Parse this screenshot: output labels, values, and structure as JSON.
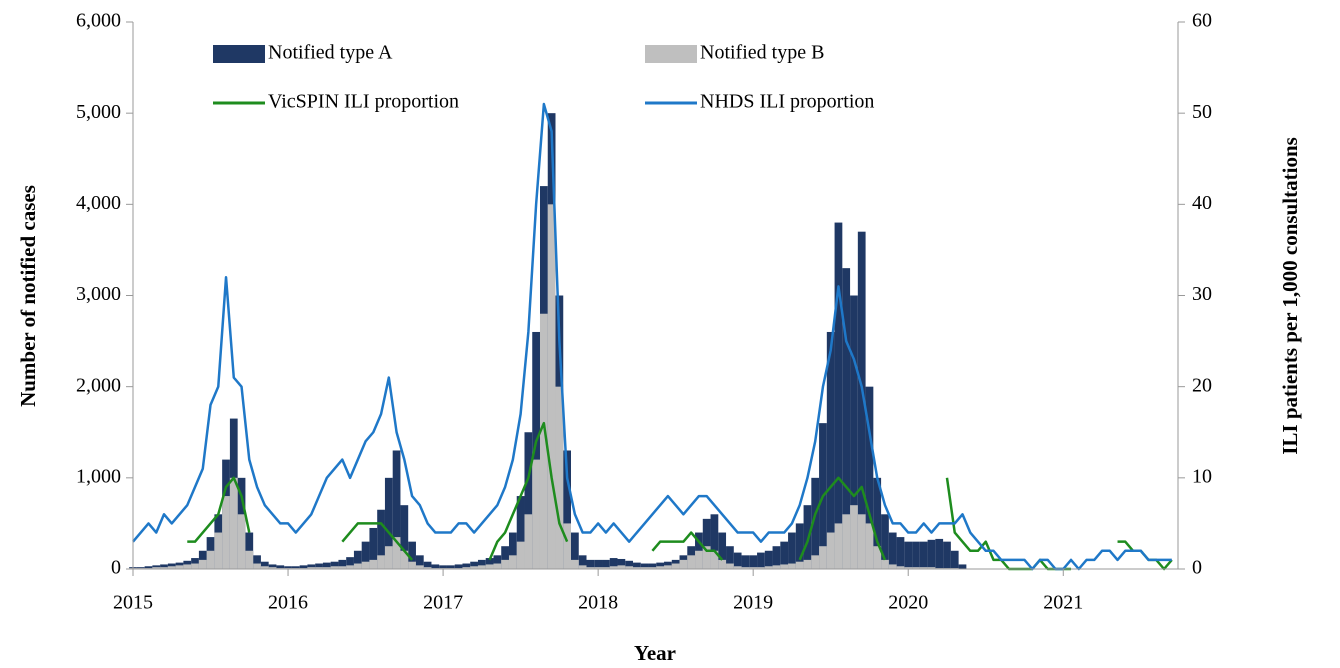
{
  "chart_data": {
    "type": "bar",
    "x_label": "Year",
    "y_label": "Number of notified cases",
    "y2_label": "ILI patients per 1,000 consultations",
    "legend": "upper center",
    "xlim": [
      2015,
      2021.74
    ],
    "xticks": [
      2015,
      2016,
      2017,
      2018,
      2019,
      2020,
      2021
    ],
    "ylim": [
      0,
      6000
    ],
    "yticks": [
      0,
      {
        "value": 1000,
        "label": "1,000"
      },
      {
        "value": 2000,
        "label": "2,000"
      },
      {
        "value": 3000,
        "label": "3,000"
      },
      {
        "value": 4000,
        "label": "4,000"
      },
      {
        "value": 5000,
        "label": "5,000"
      },
      {
        "value": 6000,
        "label": "6,000"
      }
    ],
    "y2lim": [
      0,
      60
    ],
    "y2ticks": [
      0,
      10,
      20,
      30,
      40,
      50,
      60
    ],
    "x": [
      2015,
      2015.05,
      2015.1,
      2015.15,
      2015.2,
      2015.25,
      2015.3,
      2015.35,
      2015.4,
      2015.45,
      2015.5,
      2015.55,
      2015.6,
      2015.65,
      2015.7,
      2015.75,
      2015.8,
      2015.85,
      2015.9,
      2015.95,
      2016,
      2016.05,
      2016.1,
      2016.15,
      2016.2,
      2016.25,
      2016.3,
      2016.35,
      2016.4,
      2016.45,
      2016.5,
      2016.55,
      2016.6,
      2016.65,
      2016.7,
      2016.75,
      2016.8,
      2016.85,
      2016.9,
      2016.95,
      2017,
      2017.05,
      2017.1,
      2017.15,
      2017.2,
      2017.25,
      2017.3,
      2017.35,
      2017.4,
      2017.45,
      2017.5,
      2017.55,
      2017.6,
      2017.65,
      2017.7,
      2017.75,
      2017.8,
      2017.85,
      2017.9,
      2017.95,
      2018,
      2018.05,
      2018.1,
      2018.15,
      2018.2,
      2018.25,
      2018.3,
      2018.35,
      2018.4,
      2018.45,
      2018.5,
      2018.55,
      2018.6,
      2018.65,
      2018.7,
      2018.75,
      2018.8,
      2018.85,
      2018.9,
      2018.95,
      2019,
      2019.05,
      2019.1,
      2019.15,
      2019.2,
      2019.25,
      2019.3,
      2019.35,
      2019.4,
      2019.45,
      2019.5,
      2019.55,
      2019.6,
      2019.65,
      2019.7,
      2019.75,
      2019.8,
      2019.85,
      2019.9,
      2019.95,
      2020,
      2020.05,
      2020.1,
      2020.15,
      2020.2,
      2020.25,
      2020.3,
      2020.35,
      2020.4,
      2020.45,
      2020.5,
      2020.55,
      2020.6,
      2020.65,
      2020.7,
      2020.75,
      2020.8,
      2020.85,
      2020.9,
      2020.95,
      2021,
      2021.05,
      2021.1,
      2021.15,
      2021.2,
      2021.25,
      2021.3,
      2021.35,
      2021.4,
      2021.45,
      2021.5,
      2021.55,
      2021.6,
      2021.65,
      2021.7
    ],
    "series": [
      {
        "name": "Notified type A",
        "type": "bar",
        "color": "#1f3864",
        "values": [
          20,
          20,
          30,
          40,
          50,
          60,
          70,
          90,
          120,
          200,
          350,
          600,
          1200,
          1650,
          1000,
          400,
          150,
          80,
          50,
          40,
          30,
          30,
          40,
          50,
          60,
          70,
          80,
          100,
          130,
          200,
          300,
          450,
          650,
          1000,
          1300,
          700,
          300,
          150,
          80,
          50,
          40,
          40,
          50,
          60,
          80,
          100,
          120,
          150,
          250,
          400,
          800,
          1500,
          2600,
          4200,
          5000,
          3000,
          1300,
          400,
          150,
          100,
          100,
          100,
          120,
          110,
          90,
          70,
          60,
          60,
          70,
          80,
          100,
          150,
          250,
          400,
          550,
          600,
          400,
          250,
          180,
          150,
          150,
          180,
          200,
          250,
          300,
          400,
          500,
          700,
          1000,
          1600,
          2600,
          3800,
          3300,
          3000,
          3700,
          2000,
          1000,
          600,
          400,
          350,
          300,
          300,
          300,
          320,
          330,
          300,
          200,
          50,
          0,
          0,
          0,
          0,
          0,
          0,
          0,
          0,
          0,
          0,
          0,
          0,
          0,
          0,
          0,
          0,
          0,
          0,
          0,
          0,
          0,
          0,
          0,
          0,
          0,
          0,
          0
        ]
      },
      {
        "name": "Notified type B",
        "type": "bar",
        "color": "#bfbfbf",
        "values": [
          10,
          10,
          10,
          20,
          20,
          30,
          40,
          50,
          60,
          100,
          200,
          400,
          800,
          1000,
          600,
          200,
          60,
          30,
          20,
          10,
          10,
          10,
          10,
          20,
          20,
          20,
          30,
          30,
          40,
          60,
          80,
          100,
          150,
          250,
          350,
          200,
          80,
          40,
          20,
          10,
          10,
          10,
          10,
          20,
          30,
          40,
          50,
          60,
          100,
          150,
          300,
          600,
          1200,
          2800,
          4000,
          2000,
          500,
          100,
          40,
          20,
          20,
          20,
          30,
          40,
          30,
          20,
          20,
          20,
          30,
          40,
          60,
          100,
          150,
          200,
          250,
          200,
          100,
          60,
          30,
          20,
          20,
          20,
          30,
          40,
          50,
          60,
          80,
          100,
          150,
          250,
          400,
          500,
          600,
          700,
          600,
          500,
          250,
          100,
          50,
          30,
          20,
          20,
          20,
          20,
          10,
          10,
          10,
          0,
          0,
          0,
          0,
          0,
          0,
          0,
          0,
          0,
          0,
          0,
          0,
          0,
          0,
          0,
          0,
          0,
          0,
          0,
          0,
          0,
          0,
          0,
          0,
          0,
          0,
          0,
          0
        ]
      },
      {
        "name": "VicSPIN ILI proportion",
        "type": "line",
        "axis": "y2",
        "color": "#1e8c1e",
        "values": [
          null,
          null,
          null,
          null,
          null,
          null,
          null,
          3,
          3,
          4,
          5,
          6,
          9,
          10,
          8,
          4,
          null,
          null,
          null,
          null,
          null,
          null,
          null,
          null,
          null,
          null,
          null,
          3,
          4,
          5,
          5,
          5,
          5,
          4,
          3,
          2,
          1,
          null,
          null,
          null,
          null,
          null,
          null,
          null,
          null,
          null,
          1,
          3,
          4,
          6,
          8,
          10,
          14,
          16,
          10,
          5,
          3,
          null,
          null,
          null,
          null,
          null,
          null,
          null,
          null,
          null,
          null,
          2,
          3,
          3,
          3,
          3,
          4,
          3,
          2,
          2,
          1,
          null,
          null,
          null,
          null,
          null,
          null,
          null,
          null,
          null,
          1,
          3,
          6,
          8,
          9,
          10,
          9,
          8,
          9,
          6,
          3,
          1,
          null,
          null,
          null,
          null,
          null,
          null,
          null,
          10,
          4,
          3,
          2,
          2,
          3,
          1,
          1,
          0,
          0,
          0,
          0,
          1,
          0,
          0,
          0,
          0,
          null,
          null,
          null,
          null,
          null,
          3,
          3,
          2,
          2,
          1,
          1,
          0,
          1
        ]
      },
      {
        "name": "NHDS ILI proportion",
        "type": "line",
        "axis": "y2",
        "color": "#1f78c8",
        "values": [
          3,
          4,
          5,
          4,
          6,
          5,
          6,
          7,
          9,
          11,
          18,
          20,
          32,
          21,
          20,
          12,
          9,
          7,
          6,
          5,
          5,
          4,
          5,
          6,
          8,
          10,
          11,
          12,
          10,
          12,
          14,
          15,
          17,
          21,
          15,
          12,
          8,
          7,
          5,
          4,
          4,
          4,
          5,
          5,
          4,
          5,
          6,
          7,
          9,
          12,
          17,
          26,
          40,
          51,
          48,
          25,
          10,
          6,
          4,
          4,
          5,
          4,
          5,
          4,
          3,
          4,
          5,
          6,
          7,
          8,
          7,
          6,
          7,
          8,
          8,
          7,
          6,
          5,
          4,
          4,
          4,
          3,
          4,
          4,
          4,
          5,
          7,
          10,
          14,
          20,
          24,
          31,
          25,
          23,
          20,
          15,
          10,
          7,
          5,
          5,
          4,
          4,
          5,
          4,
          5,
          5,
          5,
          6,
          4,
          3,
          2,
          2,
          1,
          1,
          1,
          1,
          0,
          1,
          1,
          0,
          0,
          1,
          0,
          1,
          1,
          2,
          2,
          1,
          2,
          2,
          2,
          1,
          1,
          1,
          1
        ]
      }
    ]
  }
}
